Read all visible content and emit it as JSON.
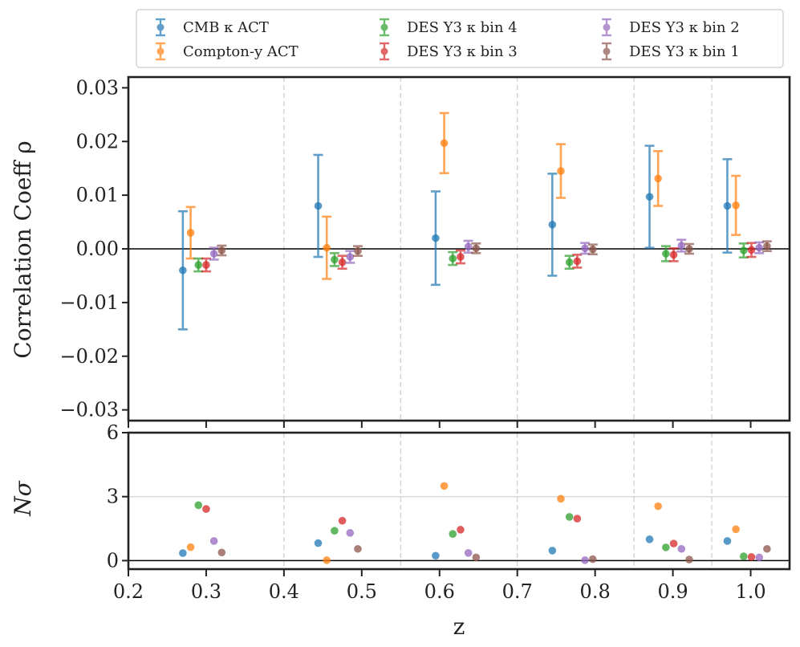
{
  "chart_data": {
    "type": "scatter",
    "x_centers": [
      0.3,
      0.45,
      0.62,
      0.77,
      0.895,
      0.995
    ],
    "xlabel": "z",
    "xlim": [
      0.2,
      1.05
    ],
    "xticks": [
      0.2,
      0.3,
      0.4,
      0.5,
      0.6,
      0.7,
      0.8,
      0.9,
      1.0
    ],
    "xtick_labels": [
      "0.2",
      "0.3",
      "0.4",
      "0.5",
      "0.6",
      "0.7",
      "0.8",
      "0.9",
      "1.0"
    ],
    "bin_edges": [
      0.4,
      0.55,
      0.7,
      0.85,
      0.95
    ],
    "top": {
      "ylabel": "Correlation Coeff ρ",
      "ylim": [
        -0.032,
        0.032
      ],
      "yticks": [
        -0.03,
        -0.02,
        -0.01,
        0.0,
        0.01,
        0.02,
        0.03
      ],
      "ytick_labels": [
        "−0.03",
        "−0.02",
        "−0.01",
        "0.00",
        "0.01",
        "0.02",
        "0.03"
      ]
    },
    "bottom": {
      "ylabel": "Nσ",
      "ylim": [
        -0.4,
        6
      ],
      "yticks": [
        0,
        3,
        6
      ],
      "ytick_labels": [
        "0",
        "3",
        "6"
      ],
      "hline": 3
    },
    "legend_position": "top, outside plot",
    "series": [
      {
        "name": "CMB κ ACT",
        "color": "#1f77b4",
        "x": [
          0.27,
          0.444,
          0.595,
          0.745,
          0.87,
          0.97
        ],
        "rho": [
          -0.004,
          0.008,
          0.002,
          0.0045,
          0.0097,
          0.008
        ],
        "err": [
          0.011,
          0.0095,
          0.0087,
          0.0095,
          0.0095,
          0.0087
        ],
        "nsigma": [
          0.35,
          0.82,
          0.23,
          0.47,
          1.0,
          0.92
        ]
      },
      {
        "name": "Compton-y ACT",
        "color": "#ff7f0e",
        "x": [
          0.28,
          0.455,
          0.606,
          0.756,
          0.881,
          0.981
        ],
        "rho": [
          0.003,
          0.0002,
          0.0197,
          0.0145,
          0.0131,
          0.0081
        ],
        "err": [
          0.0048,
          0.0058,
          0.0056,
          0.005,
          0.0051,
          0.0055
        ],
        "nsigma": [
          0.63,
          0.02,
          3.5,
          2.9,
          2.55,
          1.47
        ]
      },
      {
        "name": "DES Y3 κ bin 4",
        "color": "#2ca02c",
        "x": [
          0.29,
          0.465,
          0.617,
          0.767,
          0.891,
          0.991
        ],
        "rho": [
          -0.003,
          -0.002,
          -0.0018,
          -0.0025,
          -0.0009,
          -0.0003
        ],
        "err": [
          0.0012,
          0.0012,
          0.0012,
          0.0012,
          0.0014,
          0.0013
        ],
        "nsigma": [
          2.6,
          1.4,
          1.25,
          2.05,
          0.62,
          0.2
        ]
      },
      {
        "name": "DES Y3 κ bin 3",
        "color": "#d62728",
        "x": [
          0.3,
          0.475,
          0.627,
          0.777,
          0.901,
          1.001
        ],
        "rho": [
          -0.003,
          -0.0025,
          -0.0015,
          -0.0023,
          -0.0011,
          -0.0002
        ],
        "err": [
          0.0012,
          0.0012,
          0.0012,
          0.0012,
          0.0012,
          0.0013
        ],
        "nsigma": [
          2.42,
          1.87,
          1.45,
          1.97,
          0.8,
          0.17
        ]
      },
      {
        "name": "DES Y3 κ bin 2",
        "color": "#9467bd",
        "x": [
          0.31,
          0.485,
          0.637,
          0.787,
          0.911,
          1.011
        ],
        "rho": [
          -0.0009,
          -0.0015,
          0.0004,
          0.0001,
          0.0006,
          0.0002
        ],
        "err": [
          0.0011,
          0.0011,
          0.0011,
          0.001,
          0.0011,
          0.001
        ],
        "nsigma": [
          0.92,
          1.3,
          0.36,
          0.02,
          0.55,
          0.15
        ]
      },
      {
        "name": "DES Y3 κ bin 1",
        "color": "#8c564b",
        "x": [
          0.32,
          0.495,
          0.647,
          0.797,
          0.921,
          1.021
        ],
        "rho": [
          -0.0003,
          -0.0004,
          0.0001,
          -0.0001,
          0.0,
          0.0005
        ],
        "err": [
          0.0009,
          0.0009,
          0.0009,
          0.0009,
          0.0009,
          0.0009
        ],
        "nsigma": [
          0.38,
          0.55,
          0.15,
          0.07,
          0.05,
          0.55
        ]
      }
    ]
  }
}
